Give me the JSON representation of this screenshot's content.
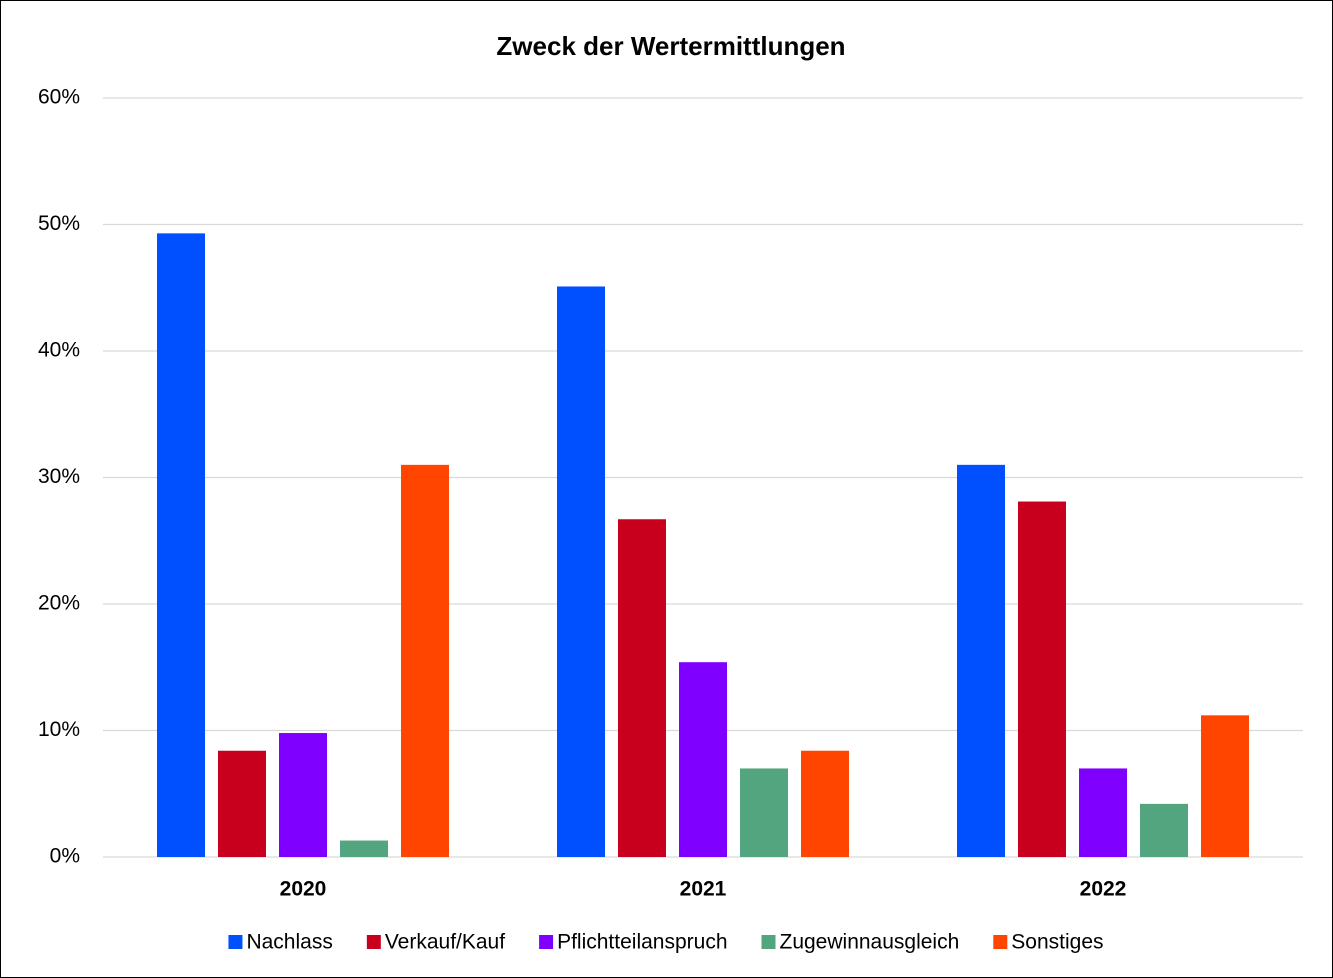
{
  "chart_data": {
    "type": "bar",
    "title": "Zweck der Wertermittlungen",
    "categories": [
      "2020",
      "2021",
      "2022"
    ],
    "series": [
      {
        "name": "Nachlass",
        "color": "#0050ff",
        "values": [
          49.3,
          45.1,
          31.0
        ]
      },
      {
        "name": "Verkauf/Kauf",
        "color": "#c8001e",
        "values": [
          8.4,
          26.7,
          28.1
        ]
      },
      {
        "name": "Pflichtteilanspruch",
        "color": "#8000ff",
        "values": [
          9.8,
          15.4,
          7.0
        ]
      },
      {
        "name": "Zugewinnausgleich",
        "color": "#52a57f",
        "values": [
          1.3,
          7.0,
          4.2
        ]
      },
      {
        "name": "Sonstiges",
        "color": "#ff4500",
        "values": [
          31.0,
          8.4,
          11.2
        ]
      }
    ],
    "ylim": [
      0,
      60
    ],
    "yticks": [
      {
        "value": 0,
        "label": "0%"
      },
      {
        "value": 10,
        "label": "10%"
      },
      {
        "value": 20,
        "label": "20%"
      },
      {
        "value": 30,
        "label": "30%"
      },
      {
        "value": 40,
        "label": "40%"
      },
      {
        "value": 50,
        "label": "50%"
      },
      {
        "value": 60,
        "label": "60%"
      }
    ],
    "grid": true,
    "legend": "bottom"
  }
}
